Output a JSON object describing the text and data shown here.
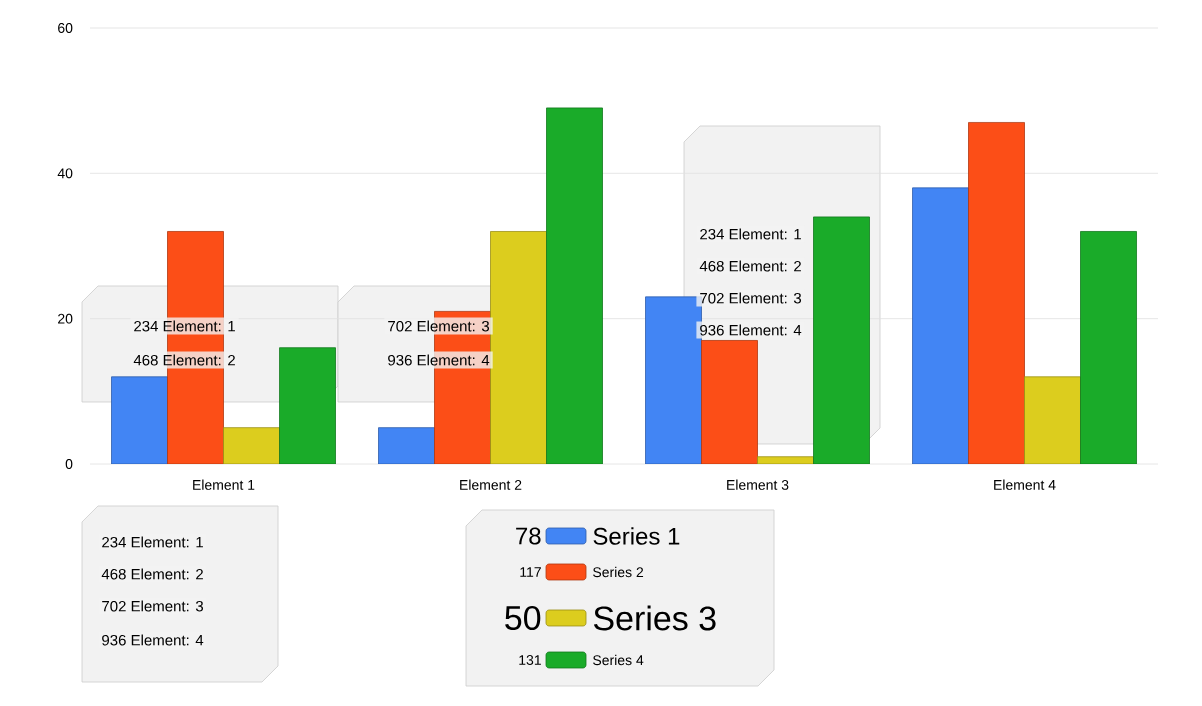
{
  "chart_data": {
    "type": "bar",
    "categories": [
      "Element 1",
      "Element 2",
      "Element 3",
      "Element 4"
    ],
    "series": [
      {
        "name": "Series 1",
        "color": "#4285f4",
        "values": [
          12,
          5,
          23,
          38
        ]
      },
      {
        "name": "Series 2",
        "color": "#fc4e17",
        "values": [
          32,
          21,
          17,
          47
        ]
      },
      {
        "name": "Series 3",
        "color": "#dccd1e",
        "values": [
          5,
          32,
          1,
          12
        ]
      },
      {
        "name": "Series 4",
        "color": "#1aab29",
        "values": [
          16,
          49,
          34,
          32
        ]
      }
    ],
    "ylim": [
      0,
      60
    ],
    "yticks": [
      0,
      20,
      40,
      60
    ],
    "grid": "y",
    "legend": "bottom",
    "annotations": [
      "234 Element: 1",
      "468 Element: 2",
      "702 Element: 3",
      "936 Element: 4",
      "234 Element: 1",
      "468 Element: 2",
      "702 Element: 3",
      "936 Element: 4",
      "234 Element: 1",
      "468 Element: 2",
      "702 Element: 3",
      "936 Element: 4",
      "78",
      "117",
      "50",
      "131"
    ]
  }
}
